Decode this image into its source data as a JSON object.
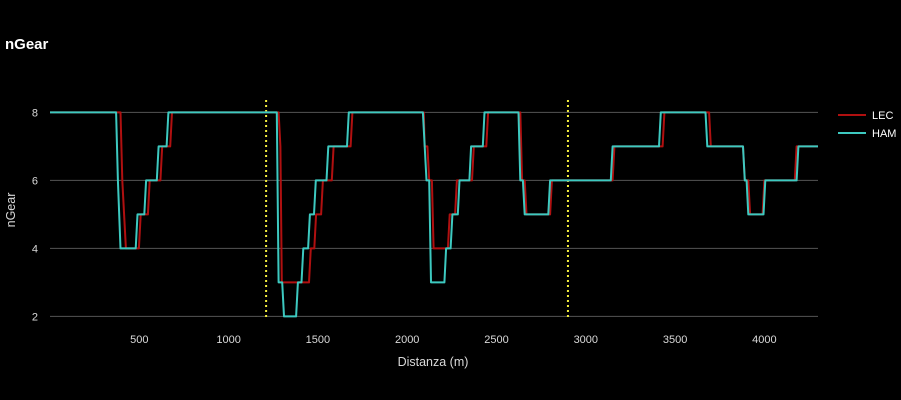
{
  "chart_data": {
    "type": "line",
    "title": "nGear",
    "xlabel": "Distanza (m)",
    "ylabel": "nGear",
    "xlim": [
      0,
      4300
    ],
    "ylim": [
      1.6,
      8.6
    ],
    "x_ticks": [
      500,
      1000,
      1500,
      2000,
      2500,
      3000,
      3500,
      4000
    ],
    "y_ticks": [
      2,
      4,
      6,
      8
    ],
    "grid": "horizontal",
    "legend_position": "right",
    "sector_lines": [
      1210,
      2900
    ],
    "colors": {
      "background": "#000000",
      "grid": "#555555",
      "LEC": "#b01010",
      "HAM": "#3dc9c0",
      "sector": "#f3ee3e"
    },
    "series": [
      {
        "name": "LEC",
        "points": [
          [
            0,
            8
          ],
          [
            395,
            8
          ],
          [
            405,
            6
          ],
          [
            425,
            4
          ],
          [
            498,
            4
          ],
          [
            508,
            5
          ],
          [
            548,
            5
          ],
          [
            558,
            6
          ],
          [
            618,
            6
          ],
          [
            628,
            7
          ],
          [
            673,
            7
          ],
          [
            683,
            8
          ],
          [
            838,
            8
          ],
          [
            848,
            8
          ],
          [
            1280,
            8
          ],
          [
            1290,
            7
          ],
          [
            1298,
            3
          ],
          [
            1378,
            3
          ],
          [
            1388,
            3
          ],
          [
            1408,
            3
          ],
          [
            1418,
            3
          ],
          [
            1450,
            3
          ],
          [
            1460,
            4
          ],
          [
            1480,
            4
          ],
          [
            1490,
            5
          ],
          [
            1518,
            5
          ],
          [
            1528,
            6
          ],
          [
            1578,
            6
          ],
          [
            1588,
            7
          ],
          [
            1683,
            7
          ],
          [
            1693,
            8
          ],
          [
            1763,
            8
          ],
          [
            1773,
            8
          ],
          [
            2093,
            8
          ],
          [
            2098,
            7
          ],
          [
            2113,
            7
          ],
          [
            2123,
            6
          ],
          [
            2138,
            6
          ],
          [
            2148,
            4
          ],
          [
            2228,
            4
          ],
          [
            2238,
            5
          ],
          [
            2268,
            5
          ],
          [
            2278,
            6
          ],
          [
            2363,
            6
          ],
          [
            2373,
            7
          ],
          [
            2443,
            7
          ],
          [
            2453,
            8
          ],
          [
            2633,
            8
          ],
          [
            2643,
            6
          ],
          [
            2658,
            6
          ],
          [
            2668,
            5
          ],
          [
            2800,
            5
          ],
          [
            2810,
            6
          ],
          [
            3150,
            6
          ],
          [
            3160,
            7
          ],
          [
            3430,
            7
          ],
          [
            3440,
            8
          ],
          [
            3690,
            8
          ],
          [
            3700,
            7
          ],
          [
            3880,
            7
          ],
          [
            3890,
            6
          ],
          [
            3910,
            6
          ],
          [
            3920,
            5
          ],
          [
            3990,
            5
          ],
          [
            4000,
            6
          ],
          [
            4170,
            6
          ],
          [
            4180,
            7
          ],
          [
            4300,
            7
          ]
        ]
      },
      {
        "name": "HAM",
        "points": [
          [
            0,
            8
          ],
          [
            370,
            8
          ],
          [
            380,
            6
          ],
          [
            395,
            4
          ],
          [
            480,
            4
          ],
          [
            490,
            5
          ],
          [
            528,
            5
          ],
          [
            538,
            6
          ],
          [
            598,
            6
          ],
          [
            608,
            7
          ],
          [
            653,
            7
          ],
          [
            663,
            8
          ],
          [
            823,
            8
          ],
          [
            833,
            8
          ],
          [
            1270,
            8
          ],
          [
            1280,
            3
          ],
          [
            1300,
            3
          ],
          [
            1310,
            2
          ],
          [
            1378,
            2
          ],
          [
            1388,
            3
          ],
          [
            1408,
            3
          ],
          [
            1418,
            4
          ],
          [
            1445,
            4
          ],
          [
            1455,
            5
          ],
          [
            1478,
            5
          ],
          [
            1488,
            6
          ],
          [
            1548,
            6
          ],
          [
            1558,
            7
          ],
          [
            1663,
            7
          ],
          [
            1673,
            8
          ],
          [
            1743,
            8
          ],
          [
            1753,
            8
          ],
          [
            2088,
            8
          ],
          [
            2108,
            6
          ],
          [
            2123,
            6
          ],
          [
            2133,
            3
          ],
          [
            2208,
            3
          ],
          [
            2218,
            4
          ],
          [
            2243,
            4
          ],
          [
            2253,
            5
          ],
          [
            2283,
            5
          ],
          [
            2293,
            6
          ],
          [
            2348,
            6
          ],
          [
            2358,
            7
          ],
          [
            2423,
            7
          ],
          [
            2433,
            8
          ],
          [
            2623,
            8
          ],
          [
            2633,
            6
          ],
          [
            2648,
            6
          ],
          [
            2658,
            5
          ],
          [
            2790,
            5
          ],
          [
            2800,
            6
          ],
          [
            3140,
            6
          ],
          [
            3150,
            7
          ],
          [
            3410,
            7
          ],
          [
            3420,
            8
          ],
          [
            3670,
            8
          ],
          [
            3680,
            7
          ],
          [
            3880,
            7
          ],
          [
            3890,
            6
          ],
          [
            3900,
            6
          ],
          [
            3910,
            5
          ],
          [
            3995,
            5
          ],
          [
            4005,
            6
          ],
          [
            4180,
            6
          ],
          [
            4190,
            7
          ],
          [
            4300,
            7
          ]
        ]
      }
    ]
  }
}
